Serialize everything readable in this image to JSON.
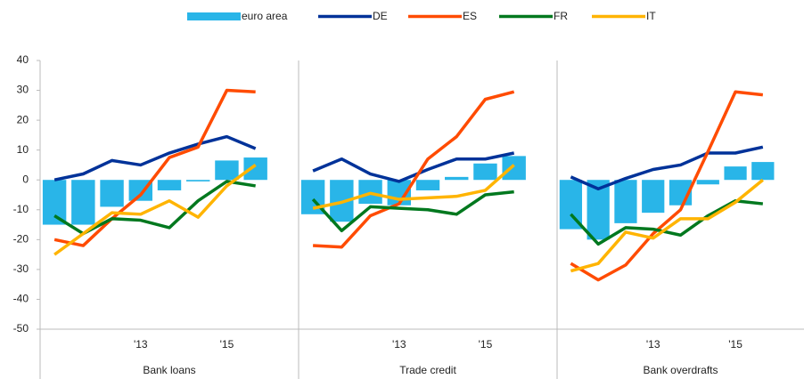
{
  "chart_data": {
    "type": "combo",
    "ylim": [
      -50,
      40
    ],
    "yticks": [
      -50,
      -40,
      -30,
      -20,
      -10,
      0,
      10,
      20,
      30,
      40
    ],
    "categories": [
      null,
      null,
      null,
      "'13",
      null,
      null,
      "'15",
      null
    ],
    "panels": [
      "Bank loans",
      "Trade credit",
      "Bank overdrafts"
    ],
    "series": [
      {
        "name": "euro area",
        "color": "#29b5e8",
        "mark": "bar",
        "values": [
          [
            -15,
            -15,
            -9,
            -7,
            -3.5,
            -0.5,
            6.5,
            7.5
          ],
          [
            -11.5,
            -14,
            -8,
            -8.5,
            -3.5,
            1,
            5.5,
            8
          ],
          [
            -16.5,
            -20,
            -14.5,
            -11,
            -8.5,
            -1.5,
            4.5,
            6
          ]
        ]
      },
      {
        "name": "DE",
        "color": "#003299",
        "mark": "line",
        "values": [
          [
            0,
            2,
            6.5,
            5,
            9,
            12,
            14.5,
            10.5
          ],
          [
            3,
            7,
            2,
            -0.5,
            3.5,
            7,
            7,
            9
          ],
          [
            1,
            -3,
            0.5,
            3.5,
            5,
            9,
            9,
            11
          ]
        ]
      },
      {
        "name": "ES",
        "color": "#ff4b00",
        "mark": "line",
        "values": [
          [
            -20,
            -22,
            -13,
            -5,
            7.5,
            11,
            30,
            29.5
          ],
          [
            -22,
            -22.5,
            -12,
            -8,
            7,
            14.5,
            27,
            29.5
          ],
          [
            -28,
            -33.5,
            -28.5,
            -18,
            -10,
            9.5,
            29.5,
            28.5
          ]
        ]
      },
      {
        "name": "FR",
        "color": "#00781e",
        "mark": "line",
        "values": [
          [
            -12,
            -18,
            -13,
            -13.5,
            -16,
            -7,
            -0.5,
            -2
          ],
          [
            -6.5,
            -17,
            -9,
            -9.5,
            -10,
            -11.5,
            -5,
            -4
          ],
          [
            -11.5,
            -21.5,
            -16,
            -16.5,
            -18.5,
            -12,
            -7,
            -8
          ]
        ]
      },
      {
        "name": "IT",
        "color": "#ffb400",
        "mark": "line",
        "values": [
          [
            -25,
            -18,
            -11,
            -11.5,
            -7,
            -12.5,
            -2,
            5
          ],
          [
            -9.5,
            -7.5,
            -4.5,
            -6.5,
            -6,
            -5.5,
            -3.5,
            5
          ],
          [
            -30.5,
            -28,
            -17.5,
            -19.5,
            -13,
            -13,
            -7.5,
            0
          ]
        ]
      }
    ]
  }
}
